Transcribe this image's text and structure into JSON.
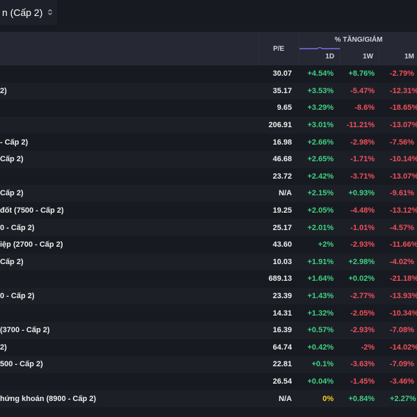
{
  "tab": {
    "label": "n (Cấp 2)",
    "icon": "chevron-up-down-icon"
  },
  "header": {
    "pe_label": "P/E",
    "pct_title": "% TĂNG/GIẢM",
    "col_1d": "1D",
    "col_1w": "1W",
    "col_1m": "1M",
    "sort_indicator_color": "#7b6cf6"
  },
  "colors": {
    "up": "#3ed283",
    "down": "#f0505a",
    "flat": "#f3d21a",
    "background": "#181a21",
    "header_bg": "#262833"
  },
  "rows": [
    {
      "name": "",
      "pe": "30.07",
      "d1": "+4.54%",
      "w1": "+8.76%",
      "m1": "-2.79%"
    },
    {
      "name": "2)",
      "pe": "35.17",
      "d1": "+3.53%",
      "w1": "-5.47%",
      "m1": "-12.31%"
    },
    {
      "name": "",
      "pe": "9.65",
      "d1": "+3.29%",
      "w1": "-8.6%",
      "m1": "-18.65%"
    },
    {
      "name": "",
      "pe": "206.91",
      "d1": "+3.01%",
      "w1": "-11.21%",
      "m1": "-13.07%"
    },
    {
      "name": "- Cấp 2)",
      "pe": "16.98",
      "d1": "+2.66%",
      "w1": "-2.98%",
      "m1": "-7.56%"
    },
    {
      "name": "Cấp 2)",
      "pe": "46.68",
      "d1": "+2.65%",
      "w1": "-1.71%",
      "m1": "-10.14%"
    },
    {
      "name": "",
      "pe": "23.72",
      "d1": "+2.42%",
      "w1": "-3.71%",
      "m1": "-13.07%"
    },
    {
      "name": "Cấp 2)",
      "pe": "N/A",
      "d1": "+2.15%",
      "w1": "+0.93%",
      "m1": "-9.61%"
    },
    {
      "name": "đốt (7500 - Cấp 2)",
      "pe": "19.25",
      "d1": "+2.05%",
      "w1": "-4.48%",
      "m1": "-13.12%"
    },
    {
      "name": "0 - Cấp 2)",
      "pe": "25.17",
      "d1": "+2.01%",
      "w1": "-1.01%",
      "m1": "-4.57%"
    },
    {
      "name": "iệp (2700 - Cấp 2)",
      "pe": "43.60",
      "d1": "+2%",
      "w1": "-2.93%",
      "m1": "-11.66%"
    },
    {
      "name": "Cấp 2)",
      "pe": "10.03",
      "d1": "+1.91%",
      "w1": "+2.98%",
      "m1": "-4.02%"
    },
    {
      "name": "",
      "pe": "689.13",
      "d1": "+1.64%",
      "w1": "+0.02%",
      "m1": "-21.18%"
    },
    {
      "name": "0 - Cấp 2)",
      "pe": "23.39",
      "d1": "+1.43%",
      "w1": "-2.77%",
      "m1": "-13.93%"
    },
    {
      "name": "",
      "pe": "14.31",
      "d1": "+1.32%",
      "w1": "-2.05%",
      "m1": "-10.34%"
    },
    {
      "name": "(3700 - Cấp 2)",
      "pe": "16.39",
      "d1": "+0.57%",
      "w1": "-2.93%",
      "m1": "-7.08%"
    },
    {
      "name": "2)",
      "pe": "64.74",
      "d1": "+0.42%",
      "w1": "-2%",
      "m1": "-14.02%"
    },
    {
      "name": "500 - Cấp 2)",
      "pe": "22.81",
      "d1": "+0.1%",
      "w1": "-3.63%",
      "m1": "-7.09%"
    },
    {
      "name": "",
      "pe": "26.54",
      "d1": "+0.04%",
      "w1": "-1.45%",
      "m1": "-3.46%"
    },
    {
      "name": "hứng khoán (8900 - Cấp 2)",
      "pe": "N/A",
      "d1": "0%",
      "w1": "+0.84%",
      "m1": "+2.27%"
    }
  ]
}
